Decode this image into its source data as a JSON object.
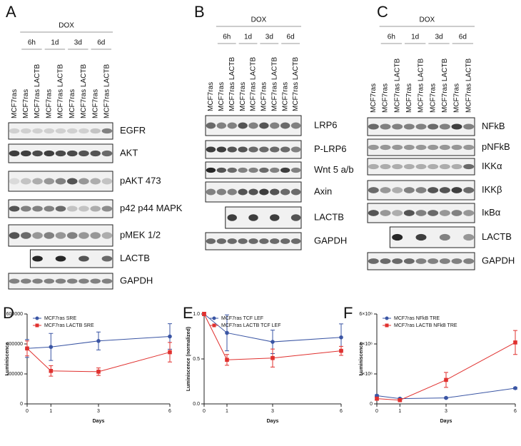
{
  "blots": [
    {
      "letter": "A",
      "treatment": "DOX",
      "timepoints": [
        "6h",
        "1d",
        "3d",
        "6d"
      ],
      "lanes": [
        "MCF7ras",
        "MCF7ras",
        "MCF7ras LACTB",
        "MCF7ras",
        "MCF7ras LACTB",
        "MCF7ras",
        "MCF7ras LACTB",
        "MCF7ras",
        "MCF7ras LACTB"
      ],
      "rows": [
        "EGFR",
        "AKT",
        "pAKT 473",
        "p42 p44 MAPK",
        "pMEK 1/2",
        "LACTB",
        "GAPDH"
      ]
    },
    {
      "letter": "B",
      "treatment": "DOX",
      "timepoints": [
        "6h",
        "1d",
        "3d",
        "6d"
      ],
      "lanes": [
        "MCF7ras",
        "MCF7ras",
        "MCF7ras LACTB",
        "MCF7ras",
        "MCF7ras LACTB",
        "MCF7ras",
        "MCF7ras LACTB",
        "MCF7ras",
        "MCF7ras LACTB"
      ],
      "rows": [
        "LRP6",
        "P-LRP6",
        "Wnt 5 a/b",
        "Axin",
        "LACTB",
        "GAPDH"
      ]
    },
    {
      "letter": "C",
      "treatment": "DOX",
      "timepoints": [
        "6h",
        "1d",
        "3d",
        "6d"
      ],
      "lanes": [
        "MCF7ras",
        "MCF7ras",
        "MCF7ras LACTB",
        "MCF7ras",
        "MCF7ras LACTB",
        "MCF7ras",
        "MCF7ras LACTB",
        "MCF7ras",
        "MCF7ras LACTB"
      ],
      "rows": [
        "NFkB",
        "pNFkB",
        "IKKα",
        "IKKβ",
        "IκBα",
        "LACTB",
        "GAPDH"
      ]
    }
  ],
  "chart_data": [
    {
      "type": "line",
      "letter": "D",
      "x_label": "Days",
      "y_label": "Luminiscence",
      "x": [
        0,
        1,
        3,
        6
      ],
      "xlim": [
        0,
        6
      ],
      "xticks": [
        0,
        1,
        3,
        6
      ],
      "ylim": [
        0,
        600000
      ],
      "yticks": [
        0,
        200000,
        400000,
        600000
      ],
      "series": [
        {
          "name": "MCF7ras SRE",
          "color": "#3a55a4",
          "values": [
            370000,
            380000,
            420000,
            450000
          ],
          "errors": [
            60000,
            90000,
            60000,
            85000
          ]
        },
        {
          "name": "MCF7ras LACTB SRE",
          "color": "#e0312f",
          "values": [
            370000,
            220000,
            215000,
            345000
          ],
          "errors": [
            50000,
            35000,
            25000,
            65000
          ]
        }
      ]
    },
    {
      "type": "line",
      "letter": "E",
      "x_label": "Days",
      "y_label": "Luminiscence (normalized)",
      "x": [
        0,
        1,
        3,
        6
      ],
      "xlim": [
        0,
        6
      ],
      "xticks": [
        0,
        1,
        3,
        6
      ],
      "ylim": [
        0,
        1.0
      ],
      "yticks": [
        {
          "value": 0,
          "label": "0.0"
        },
        0.5,
        {
          "value": 1,
          "label": "1.0"
        }
      ],
      "series": [
        {
          "name": "MCF7ras TCF LEF",
          "color": "#3a55a4",
          "values": [
            1.0,
            0.79,
            0.69,
            0.74
          ],
          "errors": [
            0.02,
            0.2,
            0.13,
            0.15
          ]
        },
        {
          "name": "MCF7ras LACTB TCF  LEF",
          "color": "#e0312f",
          "values": [
            1.0,
            0.49,
            0.51,
            0.59
          ],
          "errors": [
            0.02,
            0.06,
            0.1,
            0.05
          ]
        }
      ]
    },
    {
      "type": "line",
      "letter": "F",
      "x_label": "Days",
      "y_label": "Luminiscence",
      "x": [
        0,
        1,
        3,
        6
      ],
      "xlim": [
        0,
        6
      ],
      "xticks": [
        0,
        1,
        3,
        6
      ],
      "ylim": [
        0,
        6000000
      ],
      "yticks": [
        0,
        {
          "value": 2000000,
          "label": "2×10⁶"
        },
        {
          "value": 4000000,
          "label": "4×10⁶"
        },
        {
          "value": 6000000,
          "label": "6×10⁶"
        }
      ],
      "series": [
        {
          "name": "MCF7ras NFkB TRE",
          "color": "#3a55a4",
          "values": [
            550000,
            350000,
            400000,
            1050000
          ],
          "errors": [
            60000,
            40000,
            30000,
            60000
          ]
        },
        {
          "name": "MCF7ras LACTB NFkB TRE",
          "color": "#e0312f",
          "values": [
            350000,
            250000,
            1600000,
            4100000
          ],
          "errors": [
            100000,
            50000,
            500000,
            800000
          ]
        }
      ]
    }
  ]
}
